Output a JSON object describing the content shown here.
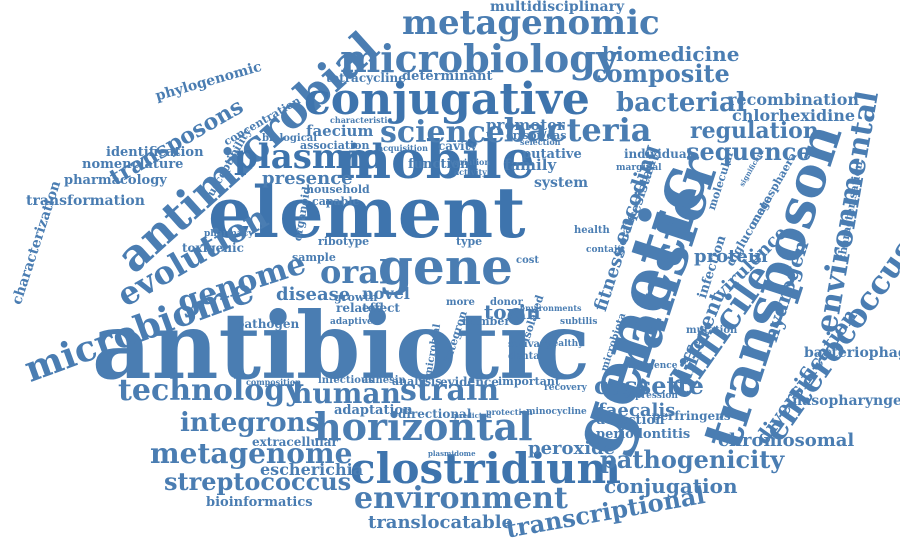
{
  "palette": {
    "word": "#4a7db2",
    "word_dark": "#3e74ad",
    "word_light": "#5b8dbf",
    "background": "#ffffff"
  },
  "words": [
    "antibiotic",
    "element",
    "genetic",
    "mobile",
    "transfer",
    "transposon",
    "antimicrobial",
    "conjugative",
    "gene",
    "clostridium",
    "horizontal",
    "environment",
    "microbiology",
    "metagenomic",
    "enterococcus",
    "microbiome",
    "plasmid",
    "difficile",
    "strain",
    "science",
    "evolution",
    "technology",
    "genome",
    "bacteria",
    "human",
    "metagenome",
    "integrons",
    "streptococcus",
    "oral",
    "sequence",
    "bacterial",
    "composite",
    "regulation",
    "environmental",
    "transcriptional",
    "pathogenicity",
    "cassette",
    "translocatable",
    "transposons",
    "diversification",
    "conjugation",
    "chromosomal",
    "toxin",
    "encoding",
    "fitness",
    "biomedicine",
    "hydrogen",
    "protein",
    "peroxide",
    "faecalis",
    "different",
    "presence",
    "disease",
    "recombination",
    "chlorhexidine",
    "virulence",
    "characterization",
    "phylogenomic",
    "transformation",
    "nomenclature",
    "pharmacology",
    "identification",
    "multidisciplinary",
    "bacteriophage",
    "nasopharyngeal",
    "periodontitis",
    "detection",
    "perfringens",
    "escherichia",
    "bioinformatics",
    "extracellular",
    "adaptation",
    "directional",
    "evidence",
    "important",
    "analysis",
    "infectious",
    "adhesin",
    "tetracycline",
    "determinant",
    "promoter",
    "function",
    "family",
    "putative",
    "system",
    "crispr/cas",
    "association",
    "biological",
    "faecium",
    "concentration",
    "susceptibility",
    "toxigenic",
    "household",
    "capable",
    "organoid",
    "ribotype",
    "sample",
    "related",
    "effect",
    "novel",
    "growth",
    "pathogen",
    "cavity",
    "isolate",
    "resistant",
    "infection",
    "digluconate",
    "megasphaera",
    "characterisation",
    "individual",
    "molecular",
    "mutation",
    "salivary",
    "dental",
    "donor",
    "number",
    "type",
    "more",
    "cost",
    "health",
    "contain",
    "expression",
    "emergence",
    "recovery",
    "integron",
    "microbial",
    "subtilis",
    "healthy",
    "isolated",
    "minocycline",
    "protection",
    "predicted",
    "composition",
    "adaptive",
    "pharmacy",
    "plasmidome",
    "significant",
    "acquisition",
    "characteristic",
    "selection",
    "marginal",
    "microbiota",
    "variation",
    "activity",
    "environments"
  ]
}
